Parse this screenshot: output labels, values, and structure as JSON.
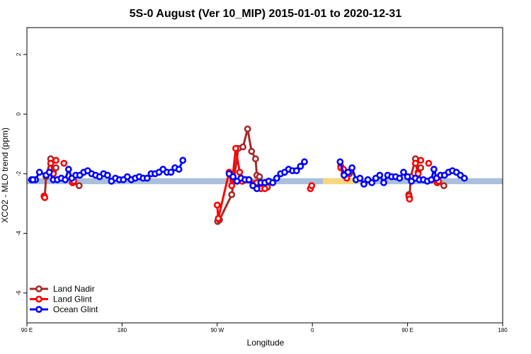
{
  "chart_data": {
    "type": "line",
    "title": "5S-0 August (Ver 10_MIP)   2015-01-01 to 2020-12-31",
    "xlabel": "Longitude",
    "ylabel": "XCO2 - MLO trend (ppm)",
    "xlim": [
      90,
      450
    ],
    "ylim": [
      -7,
      2.9
    ],
    "x_ticks": [
      {
        "value": 90,
        "label": "90 E"
      },
      {
        "value": 162,
        "label": "180"
      },
      {
        "value": 234,
        "label": "90 W"
      },
      {
        "value": 306,
        "label": "0"
      },
      {
        "value": 378,
        "label": "90 E"
      },
      {
        "value": 450,
        "label": "180"
      }
    ],
    "y_ticks": [
      -6,
      -4,
      -2,
      0,
      2
    ],
    "bands": [
      {
        "x_start": 90,
        "x_end": 450,
        "y_low": -2.35,
        "y_high": -2.15,
        "color": "#a9bfdc"
      },
      {
        "x_start": 244,
        "x_end": 252,
        "y_low": -2.35,
        "y_high": -2.15,
        "color": "#f9d77e"
      },
      {
        "x_start": 314,
        "x_end": 342,
        "y_low": -2.35,
        "y_high": -2.15,
        "color": "#f9d77e"
      }
    ],
    "legend_position": "bottom-left",
    "series": [
      {
        "name": "Land Nadir",
        "color": "#a52a2a",
        "segments": [
          [
            [
              103,
              -2.75
            ],
            [
              103.5,
              -2.8
            ],
            [
              104.5,
              -2.1
            ],
            [
              108,
              -1.5
            ],
            [
              110,
              -1.95
            ],
            [
              112,
              -1.8
            ]
          ],
          [
            [
              124.5,
              -2.3
            ],
            [
              129.5,
              -2.4
            ]
          ],
          [
            [
              234.3,
              -3.6
            ],
            [
              235.7,
              -3.55
            ],
            [
              245,
              -2.7
            ],
            [
              250,
              -1.15
            ],
            [
              253.5,
              -1.1
            ],
            [
              257,
              -0.5
            ],
            [
              260,
              -1.25
            ],
            [
              263,
              -1.5
            ],
            [
              264,
              -2.05
            ],
            [
              266,
              -2.1
            ]
          ],
          [
            [
              272,
              -2.45
            ]
          ],
          [
            [
              327.5,
              -1.75
            ]
          ],
          [
            [
              334,
              -2
            ]
          ],
          [
            [
              379,
              -2.7
            ],
            [
              379.5,
              -2.8
            ],
            [
              380.5,
              -2.1
            ],
            [
              384,
              -1.5
            ],
            [
              386,
              -1.95
            ],
            [
              388,
              -1.8
            ]
          ],
          [
            [
              400.5,
              -2.3
            ],
            [
              405.5,
              -2.4
            ]
          ]
        ]
      },
      {
        "name": "Land Glint",
        "color": "#ff0000",
        "segments": [
          [
            [
              103,
              -2.75
            ],
            [
              103.5,
              -2.8
            ]
          ],
          [
            [
              108,
              -1.65
            ],
            [
              110,
              -2.0
            ]
          ],
          [
            [
              112,
              -1.55
            ]
          ],
          [
            [
              124.5,
              -2.3
            ],
            [
              125.5,
              -2.25
            ]
          ],
          [
            [
              118,
              -1.65
            ]
          ],
          [
            [
              234,
              -3.05
            ],
            [
              234.8,
              -3.5
            ],
            [
              243,
              -1.95
            ],
            [
              245,
              -2.4
            ],
            [
              248,
              -1.15
            ],
            [
              251,
              -1.95
            ],
            [
              253,
              -2.25
            ],
            [
              257,
              -2.2
            ],
            [
              264,
              -2.3
            ],
            [
              267,
              -2.5
            ]
          ],
          [
            [
              270,
              -2.5
            ]
          ],
          [
            [
              304.5,
              -2.5
            ],
            [
              305.5,
              -2.4
            ]
          ],
          [
            [
              327.5,
              -1.8
            ],
            [
              330,
              -2.0
            ],
            [
              332,
              -2.15
            ]
          ],
          [
            [
              329.5,
              -1.85
            ]
          ],
          [
            [
              379,
              -2.75
            ],
            [
              379.5,
              -2.85
            ]
          ],
          [
            [
              384,
              -1.65
            ],
            [
              386,
              -2.0
            ]
          ],
          [
            [
              388,
              -1.55
            ]
          ],
          [
            [
              400.5,
              -2.3
            ],
            [
              401.5,
              -2.25
            ]
          ],
          [
            [
              394,
              -1.65
            ]
          ]
        ]
      },
      {
        "name": "Ocean Glint",
        "color": "#0000ff",
        "segments": [
          [
            [
              93.5,
              -2.2
            ],
            [
              96.5,
              -2.2
            ],
            [
              99.5,
              -1.95
            ],
            [
              104.5,
              -2.05
            ],
            [
              107,
              -1.95
            ],
            [
              110,
              -2.2
            ],
            [
              113,
              -2.2
            ],
            [
              116,
              -2.15
            ],
            [
              119,
              -2.2
            ],
            [
              121.5,
              -1.85
            ],
            [
              124,
              -2.15
            ],
            [
              127,
              -2.05
            ],
            [
              130,
              -2.05
            ],
            [
              133,
              -1.95
            ],
            [
              136,
              -1.9
            ],
            [
              139,
              -2.0
            ],
            [
              142,
              -2.05
            ],
            [
              145,
              -2.1
            ],
            [
              148,
              -2.0
            ],
            [
              151,
              -2.05
            ],
            [
              154,
              -2.25
            ],
            [
              157,
              -2.15
            ],
            [
              160,
              -2.2
            ],
            [
              163,
              -2.2
            ],
            [
              166,
              -2.1
            ],
            [
              169,
              -2.2
            ],
            [
              172,
              -2.15
            ],
            [
              175,
              -2.1
            ],
            [
              178,
              -2.15
            ],
            [
              181,
              -2.15
            ],
            [
              184,
              -2.0
            ],
            [
              187,
              -2.0
            ],
            [
              190,
              -1.95
            ],
            [
              193,
              -1.85
            ],
            [
              196,
              -1.95
            ],
            [
              199,
              -1.95
            ],
            [
              202,
              -1.8
            ],
            [
              205,
              -1.85
            ],
            [
              208,
              -1.55
            ]
          ],
          [
            [
              243,
              -2.0
            ],
            [
              246,
              -2.1
            ],
            [
              249,
              -2.25
            ],
            [
              252,
              -2.15
            ],
            [
              255,
              -2.2
            ],
            [
              258,
              -2.2
            ],
            [
              261,
              -2.4
            ],
            [
              264,
              -2.5
            ],
            [
              267,
              -2.3
            ],
            [
              270,
              -2.3
            ],
            [
              273,
              -2.25
            ],
            [
              276,
              -2.3
            ],
            [
              279,
              -2.15
            ],
            [
              282,
              -2.0
            ],
            [
              285,
              -1.95
            ],
            [
              288,
              -1.85
            ],
            [
              291,
              -1.9
            ],
            [
              294,
              -1.9
            ],
            [
              297,
              -1.75
            ],
            [
              300,
              -1.6
            ]
          ],
          [
            [
              327,
              -1.6
            ],
            [
              330,
              -2.05
            ],
            [
              333,
              -1.95
            ],
            [
              336,
              -1.8
            ],
            [
              339,
              -2.2
            ],
            [
              342,
              -2.15
            ],
            [
              345,
              -2.35
            ],
            [
              348,
              -2.2
            ],
            [
              351,
              -2.3
            ],
            [
              354,
              -2.15
            ],
            [
              357,
              -2.05
            ],
            [
              360,
              -2.3
            ],
            [
              363,
              -2.05
            ],
            [
              366,
              -2.1
            ],
            [
              369,
              -2.1
            ],
            [
              372,
              -2.15
            ],
            [
              375,
              -1.95
            ],
            [
              378,
              -2.1
            ],
            [
              381,
              -2.25
            ],
            [
              384,
              -2.15
            ],
            [
              387,
              -2.2
            ],
            [
              390,
              -2.2
            ],
            [
              393,
              -2.25
            ],
            [
              396,
              -2.2
            ],
            [
              398,
              -1.85
            ],
            [
              400,
              -2.15
            ],
            [
              403,
              -2.05
            ],
            [
              406,
              -2.05
            ],
            [
              409,
              -1.95
            ],
            [
              412,
              -1.9
            ],
            [
              415,
              -1.95
            ],
            [
              418,
              -2.05
            ],
            [
              421,
              -2.15
            ]
          ],
          [
            [
              94.5,
              -2.2
            ]
          ]
        ]
      }
    ]
  }
}
